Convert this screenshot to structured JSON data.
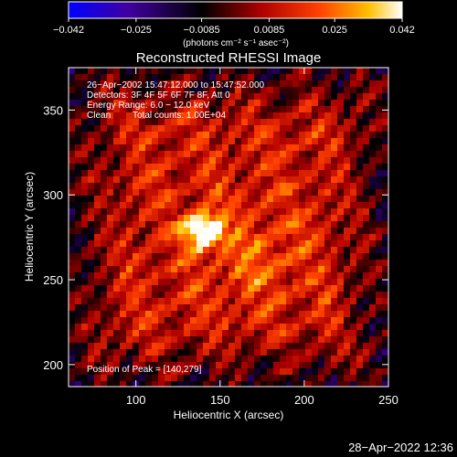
{
  "chart_data": {
    "type": "heatmap",
    "title": "Reconstructed RHESSI Image",
    "xlabel": "Heliocentric X (arcsec)",
    "ylabel": "Heliocentric Y (arcsec)",
    "xlim": [
      60,
      250
    ],
    "ylim": [
      187,
      375
    ],
    "x_ticks": [
      100,
      150,
      200,
      250
    ],
    "y_ticks": [
      200,
      250,
      300,
      350
    ],
    "colorbar": {
      "min": -0.042,
      "max": 0.042,
      "ticks": [
        -0.042,
        -0.025,
        -0.0085,
        0.0085,
        0.025,
        0.042
      ],
      "tick_labels": [
        "−0.042",
        "−0.025",
        "−0.0085",
        "0.0085",
        "0.025",
        "0.042"
      ],
      "unit_text": "(photons cm⁻² s⁻¹ asec⁻²)",
      "colormap": [
        "#0000ff",
        "#4000a0",
        "#000000",
        "#b00000",
        "#ff4000",
        "#ffc000",
        "#ffffff"
      ]
    },
    "annotations": {
      "time_range": "26−Apr−2002 15:47:12.000 to 15:47:52.000",
      "detectors": "Detectors: 3F 4F 5F 6F 7F 8F, Att 0",
      "energy": "Energy Range: 6.0 − 12.0 keV",
      "method": "Clean",
      "counts": "Total counts: 1.00E+04",
      "peak": "Position of Peak = [140,279]"
    },
    "peak": {
      "x": 140,
      "y": 279,
      "value": 0.042
    },
    "timestamp": "28−Apr−2022 12:36"
  }
}
